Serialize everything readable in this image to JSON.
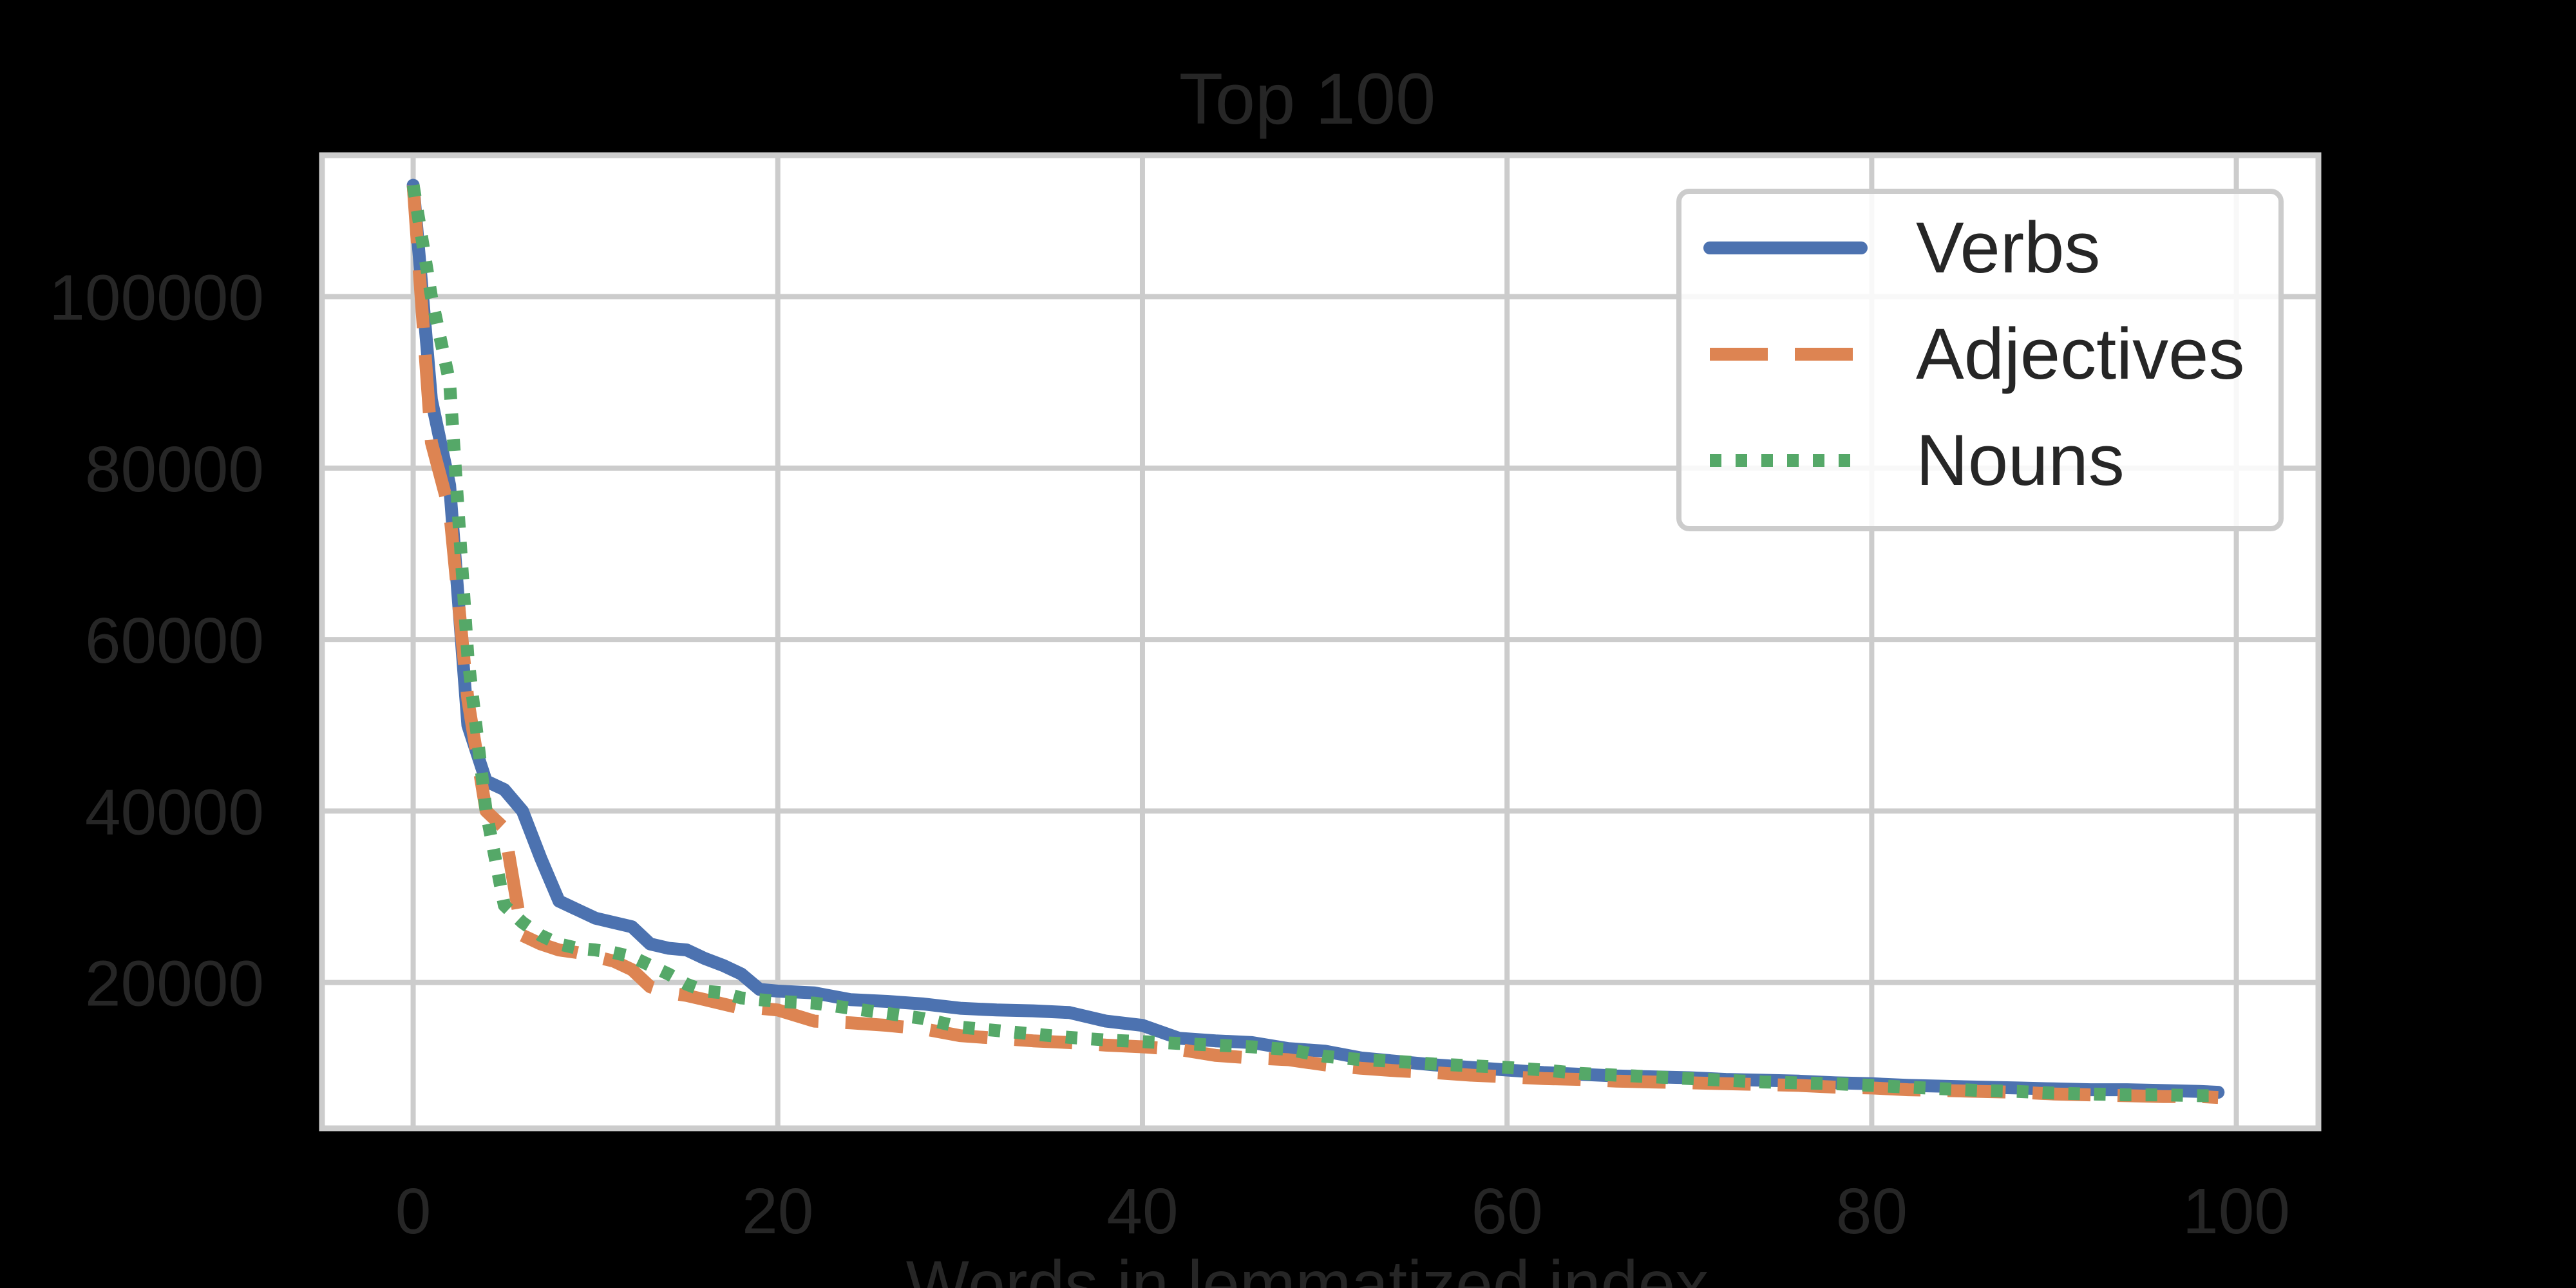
{
  "chart_data": {
    "type": "line",
    "title": "Top 100",
    "xlabel": "Words in lemmatized index",
    "ylabel": "",
    "xlim": [
      -5,
      104.5
    ],
    "ylim": [
      3000,
      116500
    ],
    "xticks": [
      0,
      20,
      40,
      60,
      80,
      100
    ],
    "xtick_labels": [
      "0",
      "20",
      "40",
      "60",
      "80",
      "100"
    ],
    "yticks": [
      20000,
      40000,
      60000,
      80000,
      100000
    ],
    "ytick_labels": [
      "20000",
      "40000",
      "60000",
      "80000",
      "100000"
    ],
    "grid": true,
    "legend_position": "top-right",
    "series": [
      {
        "name": "Verbs",
        "style": "solid",
        "color": "#4C72B0",
        "x": [
          0,
          1,
          2,
          3,
          4,
          5,
          6,
          7,
          8,
          9,
          10,
          11,
          12,
          13,
          14,
          15,
          16,
          17,
          18,
          19,
          20,
          22,
          24,
          26,
          28,
          30,
          32,
          34,
          36,
          38,
          40,
          42,
          44,
          46,
          48,
          50,
          52,
          54,
          56,
          58,
          60,
          62,
          64,
          66,
          68,
          70,
          72,
          74,
          76,
          78,
          80,
          82,
          84,
          86,
          88,
          90,
          92,
          94,
          96,
          98,
          99
        ],
        "y": [
          113000,
          88000,
          78000,
          50000,
          43500,
          42500,
          40000,
          34500,
          29500,
          28500,
          27500,
          27000,
          26500,
          24500,
          24000,
          23800,
          22800,
          22000,
          21000,
          19200,
          19000,
          18800,
          18000,
          17800,
          17500,
          17000,
          16800,
          16700,
          16500,
          15500,
          15000,
          13500,
          13200,
          13000,
          12300,
          12000,
          11200,
          10800,
          10400,
          10100,
          9800,
          9500,
          9300,
          9100,
          9000,
          8900,
          8700,
          8600,
          8500,
          8300,
          8200,
          8000,
          7900,
          7800,
          7700,
          7600,
          7500,
          7500,
          7400,
          7300,
          7200
        ]
      },
      {
        "name": "Adjectives",
        "style": "dashed",
        "color": "#DD8452",
        "x": [
          0,
          1,
          2,
          3,
          4,
          5,
          6,
          7,
          8,
          9,
          10,
          11,
          12,
          13,
          14,
          15,
          16,
          17,
          18,
          19,
          20,
          22,
          24,
          26,
          28,
          30,
          32,
          34,
          36,
          38,
          40,
          42,
          44,
          46,
          48,
          50,
          52,
          54,
          56,
          58,
          60,
          62,
          64,
          66,
          68,
          70,
          72,
          74,
          76,
          78,
          80,
          82,
          84,
          86,
          88,
          90,
          92,
          94,
          96,
          98,
          99
        ],
        "y": [
          113000,
          83000,
          75000,
          53000,
          40000,
          38000,
          25500,
          24500,
          23800,
          23500,
          23000,
          22500,
          21500,
          19500,
          18800,
          18500,
          18000,
          17500,
          17000,
          17000,
          16800,
          15500,
          15300,
          15000,
          14600,
          13800,
          13500,
          13200,
          13000,
          12700,
          12500,
          12200,
          11500,
          11200,
          11000,
          10400,
          10000,
          9700,
          9500,
          9200,
          9000,
          8800,
          8700,
          8500,
          8400,
          8300,
          8200,
          8100,
          8000,
          7800,
          7700,
          7500,
          7400,
          7300,
          7200,
          7000,
          6900,
          6800,
          6700,
          6700,
          6600
        ]
      },
      {
        "name": "Nouns",
        "style": "dotted",
        "color": "#55A868",
        "x": [
          0,
          1,
          2,
          3,
          4,
          5,
          6,
          7,
          8,
          9,
          10,
          11,
          12,
          13,
          14,
          15,
          16,
          17,
          18,
          19,
          20,
          22,
          24,
          26,
          28,
          30,
          32,
          34,
          36,
          38,
          40,
          42,
          44,
          46,
          48,
          50,
          52,
          54,
          56,
          58,
          60,
          62,
          64,
          66,
          68,
          70,
          72,
          74,
          76,
          78,
          80,
          82,
          84,
          86,
          88,
          90,
          92,
          94,
          96,
          98,
          99
        ],
        "y": [
          113000,
          100000,
          90000,
          58000,
          40000,
          29000,
          27000,
          25500,
          24500,
          24000,
          23800,
          23500,
          23000,
          22000,
          21000,
          19800,
          19000,
          18800,
          18200,
          18000,
          17800,
          17600,
          17000,
          16400,
          15800,
          14800,
          14400,
          14000,
          13600,
          13300,
          13100,
          12900,
          12700,
          12500,
          12200,
          11400,
          11000,
          10800,
          10500,
          10300,
          10100,
          9800,
          9400,
          9200,
          9000,
          8800,
          8600,
          8400,
          8300,
          8200,
          8000,
          7800,
          7600,
          7400,
          7300,
          7100,
          7000,
          6900,
          6900,
          6800,
          6800
        ]
      }
    ]
  }
}
